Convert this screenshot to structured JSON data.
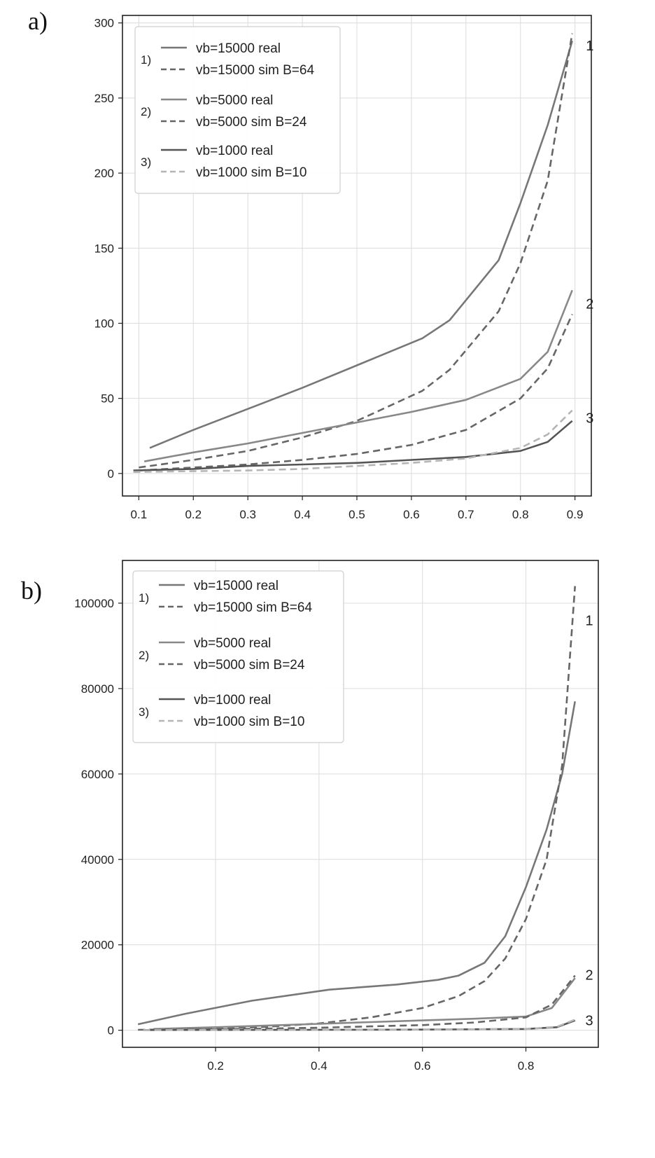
{
  "chart_data": [
    {
      "panel_label": "a)",
      "type": "line",
      "xlim": [
        0.07,
        0.93
      ],
      "ylim": [
        -15,
        305
      ],
      "xticks": [
        0.1,
        0.2,
        0.3,
        0.4,
        0.5,
        0.6,
        0.7,
        0.8,
        0.9
      ],
      "xtick_labels": [
        "0.1",
        "0.2",
        "0.3",
        "0.4",
        "0.5",
        "0.6",
        "0.7",
        "0.8",
        "0.9"
      ],
      "yticks": [
        0,
        50,
        100,
        150,
        200,
        250,
        300
      ],
      "ytick_labels": [
        "0",
        "50",
        "100",
        "150",
        "200",
        "250",
        "300"
      ],
      "grid": true,
      "legend_position": "top-left",
      "legend_groups": [
        {
          "number": "1)",
          "entries": [
            "vb=15000 real",
            "vb=15000 sim B=64"
          ]
        },
        {
          "number": "2)",
          "entries": [
            "vb=5000 real",
            "vb=5000 sim B=24"
          ]
        },
        {
          "number": "3)",
          "entries": [
            "vb=1000 real",
            "vb=1000 sim B=10"
          ]
        }
      ],
      "curve_labels": [
        {
          "text": "1",
          "x": 0.92,
          "y": 285
        },
        {
          "text": "2",
          "x": 0.92,
          "y": 113
        },
        {
          "text": "3",
          "x": 0.92,
          "y": 37
        }
      ],
      "series": [
        {
          "name": "vb=15000 real",
          "color": "#777777",
          "dash": "solid",
          "x": [
            0.12,
            0.2,
            0.3,
            0.35,
            0.4,
            0.5,
            0.62,
            0.67,
            0.76,
            0.8,
            0.85,
            0.895
          ],
          "y": [
            17,
            29,
            43,
            50,
            57,
            72,
            90,
            102,
            142,
            180,
            232,
            288
          ]
        },
        {
          "name": "vb=15000 sim B=64",
          "color": "#666666",
          "dash": "dashed",
          "x": [
            0.1,
            0.2,
            0.3,
            0.4,
            0.5,
            0.62,
            0.67,
            0.76,
            0.8,
            0.85,
            0.895
          ],
          "y": [
            4,
            9,
            15,
            24,
            35,
            55,
            69,
            108,
            140,
            195,
            293
          ]
        },
        {
          "name": "vb=5000 real",
          "color": "#888888",
          "dash": "solid",
          "x": [
            0.11,
            0.2,
            0.3,
            0.4,
            0.5,
            0.6,
            0.7,
            0.8,
            0.85,
            0.895
          ],
          "y": [
            8,
            14,
            20,
            27,
            34,
            41,
            49,
            63,
            81,
            122
          ]
        },
        {
          "name": "vb=5000 sim B=24",
          "color": "#666666",
          "dash": "dashed",
          "x": [
            0.1,
            0.2,
            0.3,
            0.4,
            0.5,
            0.6,
            0.7,
            0.8,
            0.85,
            0.895
          ],
          "y": [
            2,
            4,
            6,
            9,
            13,
            19,
            29,
            50,
            70,
            106
          ]
        },
        {
          "name": "vb=1000 real",
          "color": "#555555",
          "dash": "solid",
          "x": [
            0.09,
            0.2,
            0.3,
            0.4,
            0.5,
            0.6,
            0.7,
            0.8,
            0.85,
            0.895
          ],
          "y": [
            2,
            3,
            5,
            6,
            7,
            9,
            11,
            15,
            21,
            35
          ]
        },
        {
          "name": "vb=1000 sim B=10",
          "color": "#b5b5b5",
          "dash": "dashed",
          "x": [
            0.09,
            0.2,
            0.3,
            0.4,
            0.5,
            0.6,
            0.7,
            0.8,
            0.85,
            0.895
          ],
          "y": [
            1,
            1.5,
            2,
            3,
            5,
            7,
            10,
            17,
            26,
            42
          ]
        }
      ]
    },
    {
      "panel_label": "b)",
      "type": "line",
      "xlim": [
        0.02,
        0.94
      ],
      "ylim": [
        -4000,
        110000
      ],
      "xticks": [
        0.2,
        0.4,
        0.6,
        0.8
      ],
      "xtick_labels": [
        "0.2",
        "0.4",
        "0.6",
        "0.8"
      ],
      "yticks": [
        0,
        20000,
        40000,
        60000,
        80000,
        100000
      ],
      "ytick_labels": [
        "0",
        "20000",
        "40000",
        "60000",
        "80000",
        "100000"
      ],
      "grid": true,
      "legend_position": "top-left",
      "legend_groups": [
        {
          "number": "1)",
          "entries": [
            "vb=15000 real",
            "vb=15000 sim B=64"
          ]
        },
        {
          "number": "2)",
          "entries": [
            "vb=5000 real",
            "vb=5000 sim B=24"
          ]
        },
        {
          "number": "3)",
          "entries": [
            "vb=1000 real",
            "vb=1000 sim B=10"
          ]
        }
      ],
      "curve_labels": [
        {
          "text": "1",
          "x": 0.915,
          "y": 96000
        },
        {
          "text": "2",
          "x": 0.915,
          "y": 13000
        },
        {
          "text": "3",
          "x": 0.915,
          "y": 2300
        }
      ],
      "series": [
        {
          "name": "vb=15000 real",
          "color": "#777777",
          "dash": "solid",
          "x": [
            0.05,
            0.14,
            0.27,
            0.42,
            0.55,
            0.63,
            0.67,
            0.72,
            0.76,
            0.8,
            0.84,
            0.87,
            0.895
          ],
          "y": [
            1400,
            3800,
            6900,
            9500,
            10700,
            11800,
            12800,
            15800,
            22000,
            33500,
            47000,
            60000,
            77000
          ]
        },
        {
          "name": "vb=15000 sim B=64",
          "color": "#666666",
          "dash": "dashed",
          "x": [
            0.05,
            0.2,
            0.3,
            0.4,
            0.5,
            0.6,
            0.67,
            0.72,
            0.76,
            0.8,
            0.84,
            0.87,
            0.895
          ],
          "y": [
            100,
            350,
            800,
            1600,
            3000,
            5200,
            8000,
            11500,
            16800,
            26000,
            40000,
            62000,
            104000
          ]
        },
        {
          "name": "vb=5000 real",
          "color": "#888888",
          "dash": "solid",
          "x": [
            0.08,
            0.2,
            0.3,
            0.4,
            0.5,
            0.6,
            0.7,
            0.8,
            0.85,
            0.895
          ],
          "y": [
            300,
            700,
            1100,
            1500,
            1900,
            2300,
            2700,
            3200,
            5200,
            12200
          ]
        },
        {
          "name": "vb=5000 sim B=24",
          "color": "#666666",
          "dash": "dashed",
          "x": [
            0.08,
            0.2,
            0.3,
            0.4,
            0.5,
            0.6,
            0.7,
            0.8,
            0.85,
            0.895
          ],
          "y": [
            100,
            200,
            400,
            600,
            900,
            1200,
            1800,
            3000,
            6000,
            12800
          ]
        },
        {
          "name": "vb=1000 real",
          "color": "#555555",
          "dash": "solid",
          "x": [
            0.06,
            0.2,
            0.4,
            0.6,
            0.8,
            0.86,
            0.895
          ],
          "y": [
            50,
            70,
            100,
            150,
            300,
            700,
            2300
          ]
        },
        {
          "name": "vb=1000 sim B=10",
          "color": "#b5b5b5",
          "dash": "dashed",
          "x": [
            0.06,
            0.2,
            0.4,
            0.6,
            0.8,
            0.86,
            0.895
          ],
          "y": [
            30,
            50,
            80,
            130,
            280,
            800,
            2500
          ]
        }
      ]
    }
  ]
}
